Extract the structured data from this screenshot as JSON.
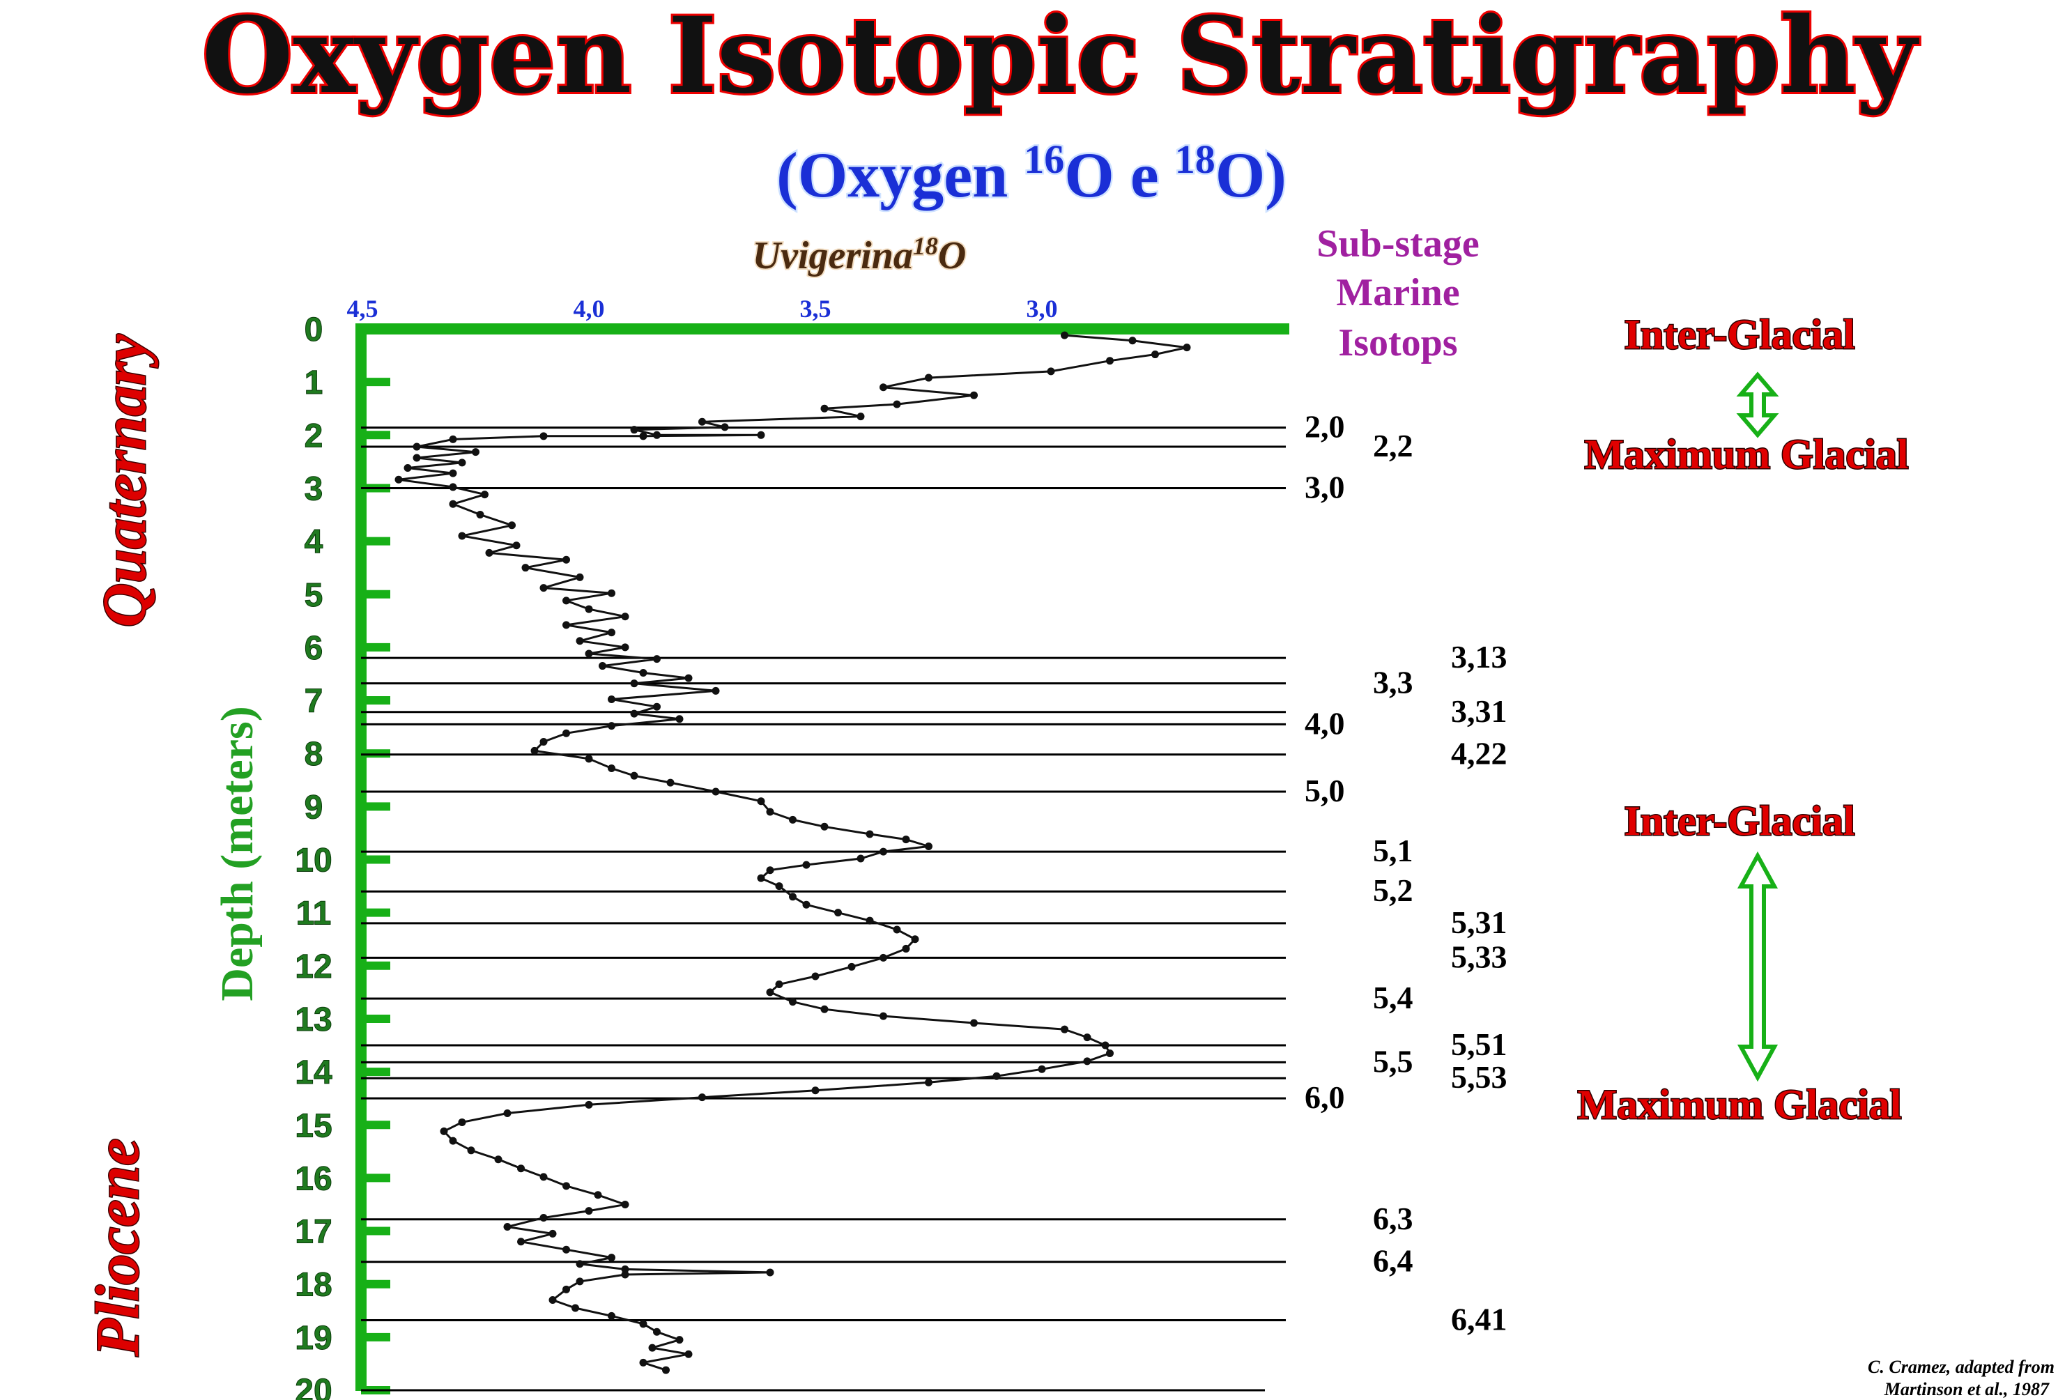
{
  "title": "Oxygen Isotopic Stratigraphy",
  "subtitle": {
    "prefix": "(Oxygen ",
    "iso1": "16",
    "mid": "O e ",
    "iso2": "18",
    "suffix": "O)"
  },
  "series_label": {
    "name": "Uvigerina",
    "sup": "18",
    "element": "O"
  },
  "substage_header": [
    "Sub-stage",
    "Marine",
    "Isotops"
  ],
  "epochs": [
    "Quaternary",
    "Pliocene"
  ],
  "climate_labels": {
    "interglacial_1": "Inter-Glacial",
    "glacial_1": "Maximum Glacial",
    "interglacial_2": "Inter-Glacial",
    "glacial_2": "Maximum Glacial"
  },
  "credit": [
    "C. Cramez, adapted from",
    "Martinson et al., 1987"
  ],
  "colors": {
    "title_fill": "#111111",
    "title_stroke": "#ee0000",
    "subtitle": "#1a2fd6",
    "axis": "#17b017",
    "substage": "#a020a0",
    "climate": "#e00000",
    "arrow": "#17b017"
  },
  "chart_data": {
    "type": "line",
    "orientation": "vertical-depth",
    "x_axis": {
      "label": "",
      "ticks": [
        4.5,
        4.0,
        3.5,
        3.0
      ],
      "tick_labels": [
        "4,5",
        "4,0",
        "3,5",
        "3,0"
      ],
      "reversed": true,
      "position": "top"
    },
    "y_axis": {
      "label": "Depth (meters)",
      "ticks": [
        0,
        1,
        2,
        3,
        4,
        5,
        6,
        7,
        8,
        9,
        10,
        11,
        12,
        13,
        14,
        15,
        16,
        17,
        18,
        19,
        20
      ],
      "reversed": true,
      "ylim": [
        0,
        20
      ]
    },
    "series": [
      {
        "points": [
          [
            2.95,
            0.12
          ],
          [
            2.8,
            0.22
          ],
          [
            2.68,
            0.35
          ],
          [
            2.75,
            0.48
          ],
          [
            2.85,
            0.6
          ],
          [
            2.98,
            0.8
          ],
          [
            3.25,
            0.92
          ],
          [
            3.35,
            1.1
          ],
          [
            3.15,
            1.25
          ],
          [
            3.32,
            1.42
          ],
          [
            3.48,
            1.5
          ],
          [
            3.4,
            1.65
          ],
          [
            3.75,
            1.75
          ],
          [
            3.7,
            1.85
          ],
          [
            3.9,
            1.9
          ],
          [
            3.85,
            2.0
          ],
          [
            3.62,
            2.0
          ],
          [
            3.88,
            2.02
          ],
          [
            4.1,
            2.02
          ],
          [
            4.3,
            2.08
          ],
          [
            4.38,
            2.22
          ],
          [
            4.25,
            2.32
          ],
          [
            4.38,
            2.43
          ],
          [
            4.28,
            2.52
          ],
          [
            4.4,
            2.62
          ],
          [
            4.3,
            2.72
          ],
          [
            4.42,
            2.84
          ],
          [
            4.3,
            2.98
          ],
          [
            4.23,
            3.12
          ],
          [
            4.3,
            3.3
          ],
          [
            4.24,
            3.5
          ],
          [
            4.17,
            3.7
          ],
          [
            4.28,
            3.9
          ],
          [
            4.16,
            4.08
          ],
          [
            4.22,
            4.22
          ],
          [
            4.05,
            4.35
          ],
          [
            4.14,
            4.5
          ],
          [
            4.02,
            4.68
          ],
          [
            4.1,
            4.88
          ],
          [
            3.95,
            4.98
          ],
          [
            4.05,
            5.12
          ],
          [
            4.0,
            5.28
          ],
          [
            3.92,
            5.42
          ],
          [
            4.05,
            5.58
          ],
          [
            3.95,
            5.72
          ],
          [
            4.02,
            5.88
          ],
          [
            3.92,
            6.0
          ],
          [
            4.0,
            6.12
          ],
          [
            3.85,
            6.22
          ],
          [
            3.97,
            6.35
          ],
          [
            3.88,
            6.48
          ],
          [
            3.78,
            6.58
          ],
          [
            3.9,
            6.68
          ],
          [
            3.72,
            6.82
          ],
          [
            3.95,
            6.98
          ],
          [
            3.85,
            7.12
          ],
          [
            3.9,
            7.25
          ],
          [
            3.8,
            7.35
          ],
          [
            3.95,
            7.48
          ],
          [
            4.05,
            7.62
          ],
          [
            4.1,
            7.78
          ],
          [
            4.12,
            7.95
          ],
          [
            4.0,
            8.1
          ],
          [
            3.95,
            8.28
          ],
          [
            3.9,
            8.42
          ],
          [
            3.82,
            8.55
          ],
          [
            3.72,
            8.72
          ],
          [
            3.62,
            8.9
          ],
          [
            3.6,
            9.1
          ],
          [
            3.55,
            9.25
          ],
          [
            3.48,
            9.38
          ],
          [
            3.38,
            9.52
          ],
          [
            3.3,
            9.62
          ],
          [
            3.25,
            9.75
          ],
          [
            3.35,
            9.85
          ],
          [
            3.4,
            9.98
          ],
          [
            3.52,
            10.1
          ],
          [
            3.6,
            10.2
          ],
          [
            3.62,
            10.35
          ],
          [
            3.58,
            10.5
          ],
          [
            3.55,
            10.7
          ],
          [
            3.52,
            10.85
          ],
          [
            3.45,
            11.0
          ],
          [
            3.38,
            11.15
          ],
          [
            3.32,
            11.32
          ],
          [
            3.28,
            11.5
          ],
          [
            3.3,
            11.68
          ],
          [
            3.35,
            11.85
          ],
          [
            3.42,
            12.02
          ],
          [
            3.5,
            12.2
          ],
          [
            3.58,
            12.35
          ],
          [
            3.6,
            12.5
          ],
          [
            3.55,
            12.68
          ],
          [
            3.48,
            12.82
          ],
          [
            3.35,
            12.95
          ],
          [
            3.15,
            13.08
          ],
          [
            2.95,
            13.2
          ],
          [
            2.9,
            13.35
          ],
          [
            2.86,
            13.5
          ],
          [
            2.85,
            13.65
          ],
          [
            2.9,
            13.8
          ],
          [
            3.0,
            13.95
          ],
          [
            3.1,
            14.08
          ],
          [
            3.25,
            14.2
          ],
          [
            3.5,
            14.35
          ],
          [
            3.75,
            14.48
          ],
          [
            4.0,
            14.62
          ],
          [
            4.18,
            14.78
          ],
          [
            4.28,
            14.95
          ],
          [
            4.32,
            15.12
          ],
          [
            4.3,
            15.3
          ],
          [
            4.26,
            15.48
          ],
          [
            4.2,
            15.65
          ],
          [
            4.15,
            15.82
          ],
          [
            4.1,
            15.98
          ],
          [
            4.05,
            16.15
          ],
          [
            3.98,
            16.32
          ],
          [
            3.92,
            16.5
          ],
          [
            4.0,
            16.62
          ],
          [
            4.1,
            16.75
          ],
          [
            4.18,
            16.92
          ],
          [
            4.08,
            17.05
          ],
          [
            4.15,
            17.2
          ],
          [
            4.05,
            17.35
          ],
          [
            3.95,
            17.5
          ],
          [
            4.02,
            17.62
          ],
          [
            3.92,
            17.72
          ],
          [
            3.6,
            17.78
          ],
          [
            3.92,
            17.82
          ],
          [
            4.02,
            17.95
          ],
          [
            4.05,
            18.1
          ],
          [
            4.08,
            18.3
          ],
          [
            4.03,
            18.45
          ],
          [
            3.95,
            18.6
          ],
          [
            3.88,
            18.75
          ],
          [
            3.85,
            18.9
          ],
          [
            3.8,
            19.05
          ],
          [
            3.86,
            19.2
          ],
          [
            3.78,
            19.32
          ],
          [
            3.88,
            19.48
          ],
          [
            3.83,
            19.62
          ]
        ]
      }
    ],
    "boundaries": [
      {
        "depth": 1.86,
        "label": "2,0",
        "col": 1
      },
      {
        "depth": 2.22,
        "label": "2,2",
        "col": 2
      },
      {
        "depth": 3.0,
        "label": "3,0",
        "col": 1
      },
      {
        "depth": 6.2,
        "label": "3,13",
        "col": 3
      },
      {
        "depth": 6.68,
        "label": "3,3",
        "col": 2
      },
      {
        "depth": 7.22,
        "label": "3,31",
        "col": 3
      },
      {
        "depth": 7.45,
        "label": "4,0",
        "col": 1
      },
      {
        "depth": 8.02,
        "label": "4,22",
        "col": 3
      },
      {
        "depth": 8.72,
        "label": "5,0",
        "col": 1
      },
      {
        "depth": 9.85,
        "label": "5,1",
        "col": 2
      },
      {
        "depth": 10.6,
        "label": "5,2",
        "col": 2
      },
      {
        "depth": 11.2,
        "label": "5,31",
        "col": 3
      },
      {
        "depth": 11.85,
        "label": "5,33",
        "col": 3
      },
      {
        "depth": 12.62,
        "label": "5,4",
        "col": 2
      },
      {
        "depth": 13.5,
        "label": "5,51",
        "col": 3
      },
      {
        "depth": 13.82,
        "label": "5,5",
        "col": 2
      },
      {
        "depth": 14.12,
        "label": "5,53",
        "col": 3
      },
      {
        "depth": 14.5,
        "label": "6,0",
        "col": 1
      },
      {
        "depth": 16.78,
        "label": "6,3",
        "col": 2
      },
      {
        "depth": 17.58,
        "label": "6,4",
        "col": 2
      },
      {
        "depth": 18.68,
        "label": "6,41",
        "col": 3
      }
    ]
  }
}
